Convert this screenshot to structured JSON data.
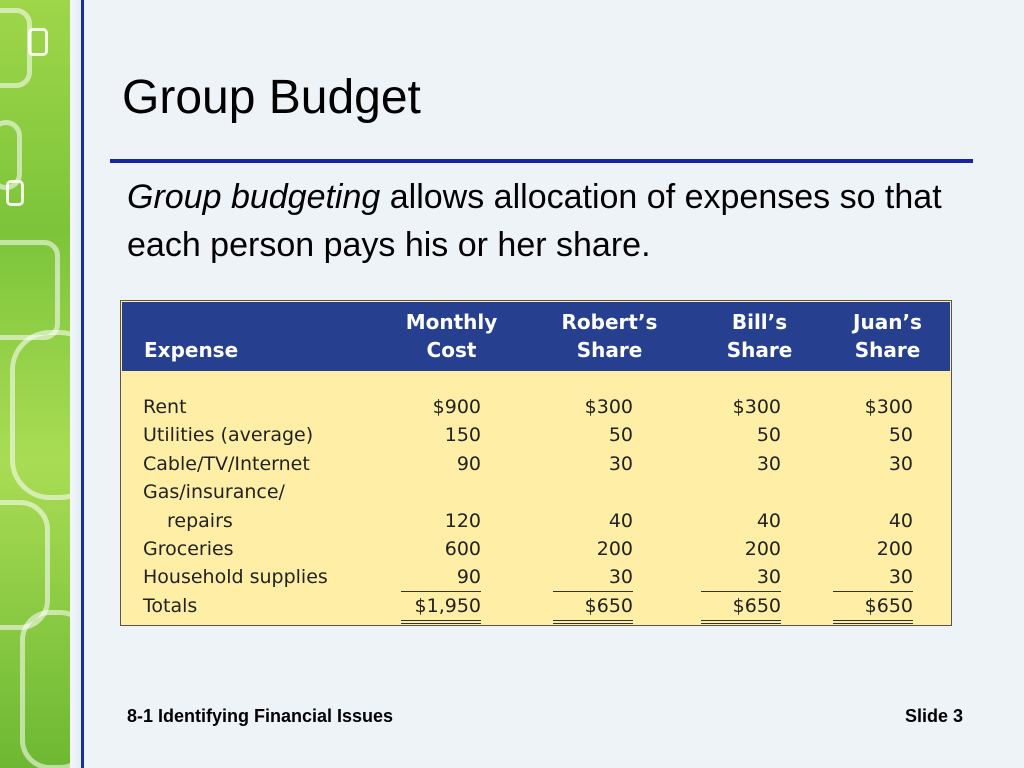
{
  "slide": {
    "title": "Group Budget",
    "intro_italic": "Group budgeting",
    "intro_rest": " allows allocation of expenses so that each person pays his or her share.",
    "footer_left": "8-1 Identifying Financial Issues",
    "footer_right": "Slide 3"
  },
  "table": {
    "headers": {
      "expense": "Expense",
      "monthly_1": "Monthly",
      "monthly_2": "Cost",
      "robert_1": "Robert’s",
      "robert_2": "Share",
      "bill_1": "Bill’s",
      "bill_2": "Share",
      "juan_1": "Juan’s",
      "juan_2": "Share"
    },
    "rows": [
      {
        "expense": "Rent",
        "monthly": "$900",
        "robert": "$300",
        "bill": "$300",
        "juan": "$300"
      },
      {
        "expense": "Utilities (average)",
        "monthly": "150",
        "robert": "50",
        "bill": "50",
        "juan": "50"
      },
      {
        "expense": "Cable/TV/Internet",
        "monthly": "90",
        "robert": "30",
        "bill": "30",
        "juan": "30"
      },
      {
        "expense": "Gas/insurance/",
        "monthly": "",
        "robert": "",
        "bill": "",
        "juan": ""
      },
      {
        "expense": "repairs",
        "monthly": "120",
        "robert": "40",
        "bill": "40",
        "juan": "40"
      },
      {
        "expense": "Groceries",
        "monthly": "600",
        "robert": "200",
        "bill": "200",
        "juan": "200"
      },
      {
        "expense": "Household supplies",
        "monthly": "90",
        "robert": "30",
        "bill": "30",
        "juan": "30"
      },
      {
        "expense": "Totals",
        "monthly": "$1,950",
        "robert": "$650",
        "bill": "$650",
        "juan": "$650"
      }
    ]
  },
  "colors": {
    "header_bg": "#26408f",
    "table_bg": "#ffefa6",
    "title_rule": "#1a22a6",
    "side_strip": "#7cc43a"
  }
}
